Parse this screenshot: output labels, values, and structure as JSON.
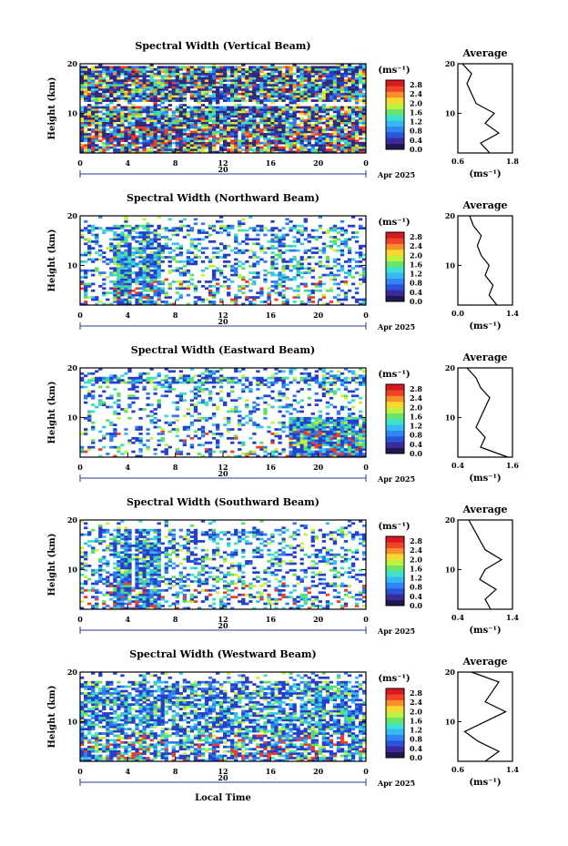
{
  "x_axis_label": "Local Time",
  "height_label": "Height (km)",
  "avg_title": "Average",
  "unit_label": "(ms⁻¹)",
  "avg_unit_label": "(ms⁻¹)",
  "date_day": "20",
  "date_label": "Apr 2025",
  "colorbar_ticks": [
    "0.0",
    "0.4",
    "0.8",
    "1.2",
    "1.6",
    "2.0",
    "2.4",
    "2.8"
  ],
  "colors": {
    "axis": "#000000",
    "date_arrow": "#2a3a9a"
  },
  "chart_data": [
    {
      "type": "heatmap",
      "title": "Spectral Width (Vertical Beam)",
      "xlabel": "",
      "ylabel": "Height (km)",
      "x_ticks": [
        "0",
        "4",
        "8",
        "12",
        "16",
        "20",
        "0"
      ],
      "y_ticks": [
        "20",
        "10"
      ],
      "xlim": [
        0,
        24
      ],
      "ylim": [
        2,
        20
      ],
      "colorbar": {
        "label": "(ms⁻¹)",
        "ticks": [
          "0.0",
          "0.4",
          "0.8",
          "1.2",
          "1.6",
          "2.0",
          "2.4",
          "2.8"
        ],
        "range": [
          0,
          3.0
        ]
      },
      "average_profile": {
        "title": "Average",
        "xlabel": "(ms⁻¹)",
        "x_ticks": [
          "0.6",
          "1.8"
        ],
        "xlim": [
          0.6,
          1.8
        ],
        "y_ticks": [
          "20",
          "10"
        ],
        "height_km": [
          2,
          4,
          6,
          8,
          10,
          12,
          14,
          16,
          18,
          20
        ],
        "width_ms": [
          1.3,
          1.1,
          1.5,
          1.2,
          1.4,
          1.0,
          0.9,
          0.8,
          0.9,
          0.7
        ]
      }
    },
    {
      "type": "heatmap",
      "title": "Spectral Width (Northward Beam)",
      "xlabel": "",
      "ylabel": "Height (km)",
      "x_ticks": [
        "0",
        "4",
        "8",
        "12",
        "16",
        "20",
        "0"
      ],
      "y_ticks": [
        "20",
        "10"
      ],
      "xlim": [
        0,
        24
      ],
      "ylim": [
        2,
        20
      ],
      "colorbar": {
        "label": "(ms⁻¹)",
        "ticks": [
          "0.0",
          "0.4",
          "0.8",
          "1.2",
          "1.6",
          "2.0",
          "2.4",
          "2.8"
        ],
        "range": [
          0,
          3.0
        ]
      },
      "average_profile": {
        "title": "Average",
        "xlabel": "(ms⁻¹)",
        "x_ticks": [
          "0.0",
          "1.4"
        ],
        "xlim": [
          0.0,
          1.4
        ],
        "y_ticks": [
          "20",
          "10"
        ],
        "height_km": [
          2,
          4,
          6,
          8,
          10,
          12,
          14,
          16,
          18,
          20
        ],
        "width_ms": [
          1.0,
          0.8,
          0.9,
          0.7,
          0.8,
          0.6,
          0.5,
          0.6,
          0.4,
          0.3
        ]
      }
    },
    {
      "type": "heatmap",
      "title": "Spectral Width (Eastward Beam)",
      "xlabel": "",
      "ylabel": "Height (km)",
      "x_ticks": [
        "0",
        "4",
        "8",
        "12",
        "16",
        "20",
        "0"
      ],
      "y_ticks": [
        "20",
        "10"
      ],
      "xlim": [
        0,
        24
      ],
      "ylim": [
        2,
        20
      ],
      "colorbar": {
        "label": "(ms⁻¹)",
        "ticks": [
          "0.0",
          "0.4",
          "0.8",
          "1.2",
          "1.6",
          "2.0",
          "2.4",
          "2.8"
        ],
        "range": [
          0,
          3.0
        ]
      },
      "average_profile": {
        "title": "Average",
        "xlabel": "(ms⁻¹)",
        "x_ticks": [
          "0.4",
          "1.6"
        ],
        "xlim": [
          0.4,
          1.6
        ],
        "y_ticks": [
          "20",
          "10"
        ],
        "height_km": [
          2,
          4,
          6,
          8,
          10,
          12,
          14,
          16,
          18,
          20
        ],
        "width_ms": [
          1.5,
          0.9,
          1.0,
          0.8,
          0.9,
          1.0,
          1.1,
          0.9,
          0.8,
          0.6
        ]
      }
    },
    {
      "type": "heatmap",
      "title": "Spectral Width (Southward Beam)",
      "xlabel": "",
      "ylabel": "Height (km)",
      "x_ticks": [
        "0",
        "4",
        "8",
        "12",
        "16",
        "20",
        "0"
      ],
      "y_ticks": [
        "20",
        "10"
      ],
      "xlim": [
        0,
        24
      ],
      "ylim": [
        2,
        20
      ],
      "colorbar": {
        "label": "(ms⁻¹)",
        "ticks": [
          "0.0",
          "0.4",
          "0.8",
          "1.2",
          "1.6",
          "2.0",
          "2.4",
          "2.8"
        ],
        "range": [
          0,
          3.0
        ]
      },
      "average_profile": {
        "title": "Average",
        "xlabel": "(ms⁻¹)",
        "x_ticks": [
          "0.4",
          "1.4"
        ],
        "xlim": [
          0.4,
          1.4
        ],
        "y_ticks": [
          "20",
          "10"
        ],
        "height_km": [
          2,
          4,
          6,
          8,
          10,
          12,
          14,
          16,
          18,
          20
        ],
        "width_ms": [
          1.0,
          0.9,
          1.1,
          0.8,
          0.9,
          1.2,
          0.9,
          0.8,
          0.7,
          0.6
        ]
      }
    },
    {
      "type": "heatmap",
      "title": "Spectral Width (Westward Beam)",
      "xlabel": "",
      "ylabel": "Height (km)",
      "x_ticks": [
        "0",
        "4",
        "8",
        "12",
        "16",
        "20",
        "0"
      ],
      "y_ticks": [
        "20",
        "10"
      ],
      "xlim": [
        0,
        24
      ],
      "ylim": [
        2,
        20
      ],
      "colorbar": {
        "label": "(ms⁻¹)",
        "ticks": [
          "0.0",
          "0.4",
          "0.8",
          "1.2",
          "1.6",
          "2.0",
          "2.4",
          "2.8"
        ],
        "range": [
          0,
          3.0
        ]
      },
      "average_profile": {
        "title": "Average",
        "xlabel": "(ms⁻¹)",
        "x_ticks": [
          "0.6",
          "1.4"
        ],
        "xlim": [
          0.6,
          1.4
        ],
        "y_ticks": [
          "20",
          "10"
        ],
        "height_km": [
          2,
          4,
          6,
          8,
          10,
          12,
          14,
          16,
          18,
          20
        ],
        "width_ms": [
          1.0,
          1.2,
          0.9,
          0.7,
          1.0,
          1.3,
          1.0,
          1.1,
          1.2,
          0.8
        ]
      }
    }
  ]
}
